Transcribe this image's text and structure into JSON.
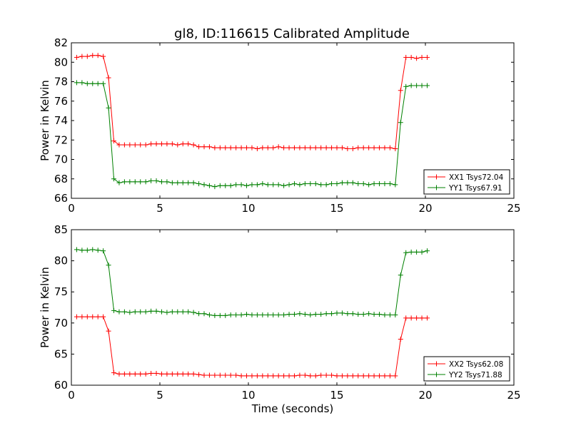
{
  "figure_title": "gl8, ID:116615 Calibrated Amplitude",
  "chart_data": [
    {
      "type": "line",
      "title": "gl8, ID:116615 Calibrated Amplitude",
      "xlabel": "",
      "ylabel": "Power in Kelvin",
      "xlim": [
        0,
        25
      ],
      "ylim": [
        66,
        82
      ],
      "xticks": [
        0,
        5,
        10,
        15,
        20,
        25
      ],
      "yticks": [
        66,
        68,
        70,
        72,
        74,
        76,
        78,
        80,
        82
      ],
      "xtick_labels": [
        "0",
        "5",
        "10",
        "15",
        "20",
        "25"
      ],
      "ytick_labels": [
        "66",
        "68",
        "70",
        "72",
        "74",
        "76",
        "78",
        "80",
        "82"
      ],
      "grid": false,
      "legend_position": "lower right",
      "series": [
        {
          "name": "XX1 Tsys72.04",
          "color": "#ff0000",
          "x": [
            0.3,
            0.6,
            0.9,
            1.2,
            1.5,
            1.8,
            2.1,
            2.4,
            2.7,
            3.0,
            3.3,
            3.6,
            3.9,
            4.2,
            4.5,
            4.8,
            5.1,
            5.4,
            5.7,
            6.0,
            6.3,
            6.6,
            6.9,
            7.2,
            7.5,
            7.8,
            8.1,
            8.4,
            8.7,
            9.0,
            9.3,
            9.6,
            9.9,
            10.2,
            10.5,
            10.8,
            11.1,
            11.4,
            11.7,
            12.0,
            12.3,
            12.6,
            12.9,
            13.2,
            13.5,
            13.8,
            14.1,
            14.4,
            14.7,
            15.0,
            15.3,
            15.6,
            15.9,
            16.2,
            16.5,
            16.8,
            17.1,
            17.4,
            17.7,
            18.0,
            18.3,
            18.6,
            18.9,
            19.2,
            19.5,
            19.8,
            20.1
          ],
          "y": [
            80.5,
            80.6,
            80.6,
            80.7,
            80.7,
            80.6,
            78.4,
            71.9,
            71.5,
            71.5,
            71.5,
            71.5,
            71.5,
            71.5,
            71.6,
            71.6,
            71.6,
            71.6,
            71.6,
            71.5,
            71.6,
            71.6,
            71.5,
            71.3,
            71.3,
            71.3,
            71.2,
            71.2,
            71.2,
            71.2,
            71.2,
            71.2,
            71.2,
            71.2,
            71.1,
            71.2,
            71.2,
            71.2,
            71.3,
            71.2,
            71.2,
            71.2,
            71.2,
            71.2,
            71.2,
            71.2,
            71.2,
            71.2,
            71.2,
            71.2,
            71.2,
            71.1,
            71.1,
            71.2,
            71.2,
            71.2,
            71.2,
            71.2,
            71.2,
            71.2,
            71.1,
            77.1,
            80.5,
            80.5,
            80.4,
            80.5,
            80.5
          ]
        },
        {
          "name": "YY1 Tsys67.91",
          "color": "#008000",
          "x": [
            0.3,
            0.6,
            0.9,
            1.2,
            1.5,
            1.8,
            2.1,
            2.4,
            2.7,
            3.0,
            3.3,
            3.6,
            3.9,
            4.2,
            4.5,
            4.8,
            5.1,
            5.4,
            5.7,
            6.0,
            6.3,
            6.6,
            6.9,
            7.2,
            7.5,
            7.8,
            8.1,
            8.4,
            8.7,
            9.0,
            9.3,
            9.6,
            9.9,
            10.2,
            10.5,
            10.8,
            11.1,
            11.4,
            11.7,
            12.0,
            12.3,
            12.6,
            12.9,
            13.2,
            13.5,
            13.8,
            14.1,
            14.4,
            14.7,
            15.0,
            15.3,
            15.6,
            15.9,
            16.2,
            16.5,
            16.8,
            17.1,
            17.4,
            17.7,
            18.0,
            18.3,
            18.6,
            18.9,
            19.2,
            19.5,
            19.8,
            20.1
          ],
          "y": [
            77.9,
            77.9,
            77.8,
            77.8,
            77.8,
            77.8,
            75.3,
            68.0,
            67.6,
            67.7,
            67.7,
            67.7,
            67.7,
            67.7,
            67.8,
            67.8,
            67.7,
            67.7,
            67.6,
            67.6,
            67.6,
            67.6,
            67.6,
            67.5,
            67.4,
            67.3,
            67.2,
            67.3,
            67.3,
            67.3,
            67.4,
            67.4,
            67.3,
            67.4,
            67.4,
            67.5,
            67.4,
            67.4,
            67.4,
            67.3,
            67.4,
            67.5,
            67.4,
            67.5,
            67.5,
            67.5,
            67.4,
            67.4,
            67.5,
            67.5,
            67.6,
            67.6,
            67.6,
            67.5,
            67.5,
            67.4,
            67.5,
            67.5,
            67.5,
            67.5,
            67.4,
            73.8,
            77.5,
            77.6,
            77.6,
            77.6,
            77.6
          ]
        }
      ]
    },
    {
      "type": "line",
      "title": "",
      "xlabel": "Time (seconds)",
      "ylabel": "Power in Kelvin",
      "xlim": [
        0,
        25
      ],
      "ylim": [
        60,
        85
      ],
      "xticks": [
        0,
        5,
        10,
        15,
        20,
        25
      ],
      "yticks": [
        60,
        65,
        70,
        75,
        80,
        85
      ],
      "xtick_labels": [
        "0",
        "5",
        "10",
        "15",
        "20",
        "25"
      ],
      "ytick_labels": [
        "60",
        "65",
        "70",
        "75",
        "80",
        "85"
      ],
      "grid": false,
      "legend_position": "lower right",
      "series": [
        {
          "name": "XX2 Tsys62.08",
          "color": "#ff0000",
          "x": [
            0.3,
            0.6,
            0.9,
            1.2,
            1.5,
            1.8,
            2.1,
            2.4,
            2.7,
            3.0,
            3.3,
            3.6,
            3.9,
            4.2,
            4.5,
            4.8,
            5.1,
            5.4,
            5.7,
            6.0,
            6.3,
            6.6,
            6.9,
            7.2,
            7.5,
            7.8,
            8.1,
            8.4,
            8.7,
            9.0,
            9.3,
            9.6,
            9.9,
            10.2,
            10.5,
            10.8,
            11.1,
            11.4,
            11.7,
            12.0,
            12.3,
            12.6,
            12.9,
            13.2,
            13.5,
            13.8,
            14.1,
            14.4,
            14.7,
            15.0,
            15.3,
            15.6,
            15.9,
            16.2,
            16.5,
            16.8,
            17.1,
            17.4,
            17.7,
            18.0,
            18.3,
            18.6,
            18.9,
            19.2,
            19.5,
            19.8,
            20.1
          ],
          "y": [
            71.0,
            71.0,
            71.0,
            71.0,
            71.0,
            71.0,
            68.7,
            62.0,
            61.8,
            61.8,
            61.8,
            61.8,
            61.8,
            61.8,
            61.9,
            61.9,
            61.8,
            61.8,
            61.8,
            61.8,
            61.8,
            61.8,
            61.8,
            61.7,
            61.6,
            61.6,
            61.6,
            61.6,
            61.6,
            61.6,
            61.6,
            61.5,
            61.5,
            61.5,
            61.5,
            61.5,
            61.5,
            61.5,
            61.5,
            61.5,
            61.5,
            61.5,
            61.6,
            61.6,
            61.5,
            61.5,
            61.6,
            61.6,
            61.6,
            61.5,
            61.5,
            61.5,
            61.5,
            61.5,
            61.5,
            61.5,
            61.5,
            61.5,
            61.5,
            61.5,
            61.5,
            67.4,
            70.8,
            70.8,
            70.8,
            70.8,
            70.8
          ]
        },
        {
          "name": "YY2 Tsys71.88",
          "color": "#008000",
          "x": [
            0.3,
            0.6,
            0.9,
            1.2,
            1.5,
            1.8,
            2.1,
            2.4,
            2.7,
            3.0,
            3.3,
            3.6,
            3.9,
            4.2,
            4.5,
            4.8,
            5.1,
            5.4,
            5.7,
            6.0,
            6.3,
            6.6,
            6.9,
            7.2,
            7.5,
            7.8,
            8.1,
            8.4,
            8.7,
            9.0,
            9.3,
            9.6,
            9.9,
            10.2,
            10.5,
            10.8,
            11.1,
            11.4,
            11.7,
            12.0,
            12.3,
            12.6,
            12.9,
            13.2,
            13.5,
            13.8,
            14.1,
            14.4,
            14.7,
            15.0,
            15.3,
            15.6,
            15.9,
            16.2,
            16.5,
            16.8,
            17.1,
            17.4,
            17.7,
            18.0,
            18.3,
            18.6,
            18.9,
            19.2,
            19.5,
            19.8,
            20.1
          ],
          "y": [
            81.8,
            81.7,
            81.7,
            81.8,
            81.7,
            81.6,
            79.3,
            72.0,
            71.8,
            71.8,
            71.7,
            71.8,
            71.8,
            71.8,
            71.9,
            71.9,
            71.8,
            71.7,
            71.8,
            71.8,
            71.8,
            71.8,
            71.7,
            71.5,
            71.5,
            71.3,
            71.2,
            71.2,
            71.2,
            71.3,
            71.3,
            71.3,
            71.4,
            71.3,
            71.3,
            71.3,
            71.3,
            71.3,
            71.3,
            71.3,
            71.4,
            71.4,
            71.5,
            71.4,
            71.3,
            71.4,
            71.4,
            71.5,
            71.5,
            71.6,
            71.6,
            71.5,
            71.5,
            71.4,
            71.4,
            71.5,
            71.4,
            71.4,
            71.3,
            71.3,
            71.3,
            77.7,
            81.3,
            81.4,
            81.4,
            81.4,
            81.6
          ]
        }
      ]
    }
  ]
}
